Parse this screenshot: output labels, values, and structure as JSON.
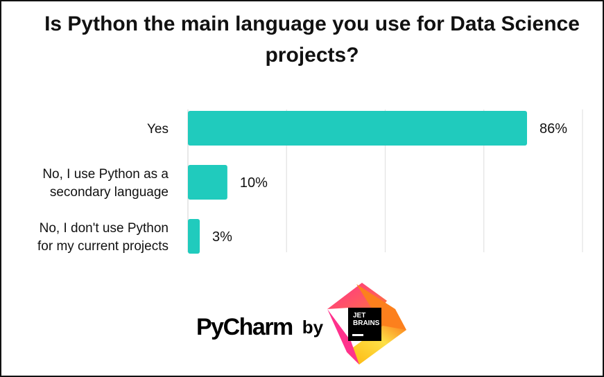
{
  "chart_data": {
    "type": "bar",
    "orientation": "horizontal",
    "title": "Is Python the main language you use for Data Science projects?",
    "categories": [
      "Yes",
      "No, I use Python as a secondary language",
      "No, I don't use Python for my current projects"
    ],
    "category_lines": [
      [
        "Yes"
      ],
      [
        "No, I use Python as a",
        "secondary language"
      ],
      [
        "No, I don't use Python",
        "for my current projects"
      ]
    ],
    "values": [
      86,
      10,
      3
    ],
    "value_labels": [
      "86%",
      "10%",
      "3%"
    ],
    "xlim": [
      0,
      100
    ],
    "grid": true,
    "color": "#20cbbd"
  },
  "branding": {
    "product": "PyCharm",
    "by": "by",
    "company_line1": "JET",
    "company_line2": "BRAINS"
  }
}
